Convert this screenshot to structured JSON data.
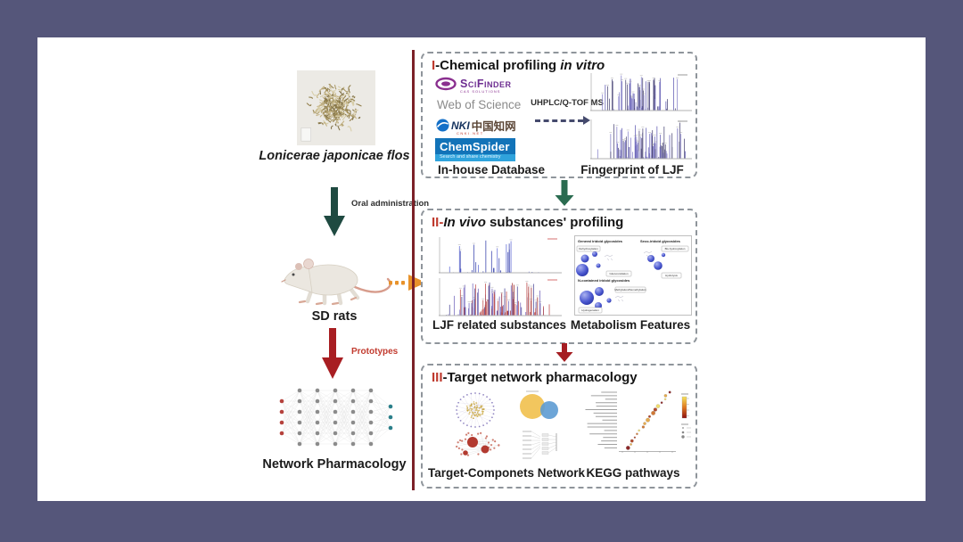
{
  "colors": {
    "background": "#55567a",
    "panel": "#ffffff",
    "divider_red": "#7c2128",
    "numeral_red": "#bf3a2e",
    "arrow_teal": "#1f4a41",
    "arrow_green": "#2a6b50",
    "arrow_red": "#a81e22",
    "arrow_orange": "#e8922a",
    "dashed_ms_arrow": "#454a6d",
    "box_border": "#8f959b",
    "chemspider_blue": "#1273b8",
    "scifinder_purple": "#8a2f8f"
  },
  "left_column": {
    "herb_label": "Lonicerae japonicae flos",
    "oral_arrow_label": "Oral administration",
    "rats_label": "SD rats",
    "prototypes_label": "Prototypes",
    "network_label": "Network Pharmacology"
  },
  "box1": {
    "numeral": "I",
    "title_pre": "-Chemical profiling ",
    "title_italic": "in vitro",
    "title_post": "",
    "scifinder_label": "SciFinder",
    "scifinder_tagline": "CAS SOLUTIONS",
    "wos_label": "Web of Science",
    "cnki_label": "NKI",
    "cnki_cn": "中国知网",
    "cnki_sub": "CNKI.NET",
    "chemspider_label": "ChemSpider",
    "chemspider_tagline": "Search and share chemistry",
    "database_label": "In-house Database",
    "ms_arrow_label": "UHPLC/Q-TOF MS",
    "fingerprint_label": "Fingerprint of LJF"
  },
  "box2": {
    "numeral": "II",
    "title_pre": "-",
    "title_italic": "In vivo",
    "title_post": " substances' profiling",
    "substances_label": "LJF related substances",
    "metabolism_label": "Metabolism Features",
    "metabolism_groups": [
      "General iridoid glycosides",
      "Seco-iridoid glycosides",
      "N-contained iridoid glycosides"
    ],
    "metabolism_tags": [
      "Dehydroxylation",
      "Glucuronidation",
      "Bis-hydroxylation",
      "Hydrolysis",
      "Methylation/Demethylation",
      "Hydrogenation"
    ]
  },
  "box3": {
    "numeral": "III",
    "title_pre": "-Target network pharmacology",
    "title_italic": "",
    "title_post": "",
    "network_label": "Target-Componets Network",
    "kegg_label": "KEGG pathways"
  }
}
